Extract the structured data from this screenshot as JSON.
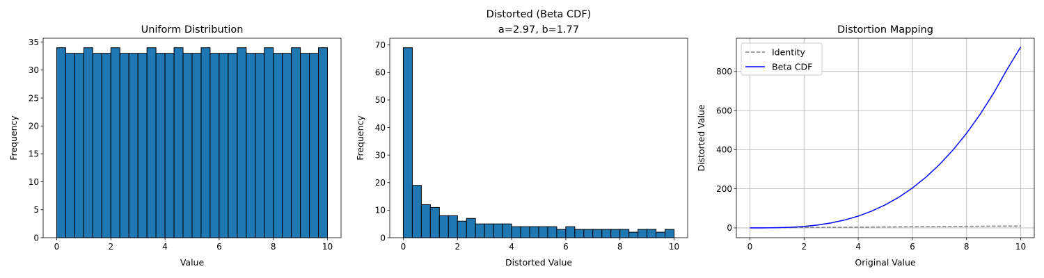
{
  "chart_data": [
    {
      "type": "bar",
      "title": "Uniform Distribution",
      "xlabel": "Value",
      "ylabel": "Frequency",
      "xlim": [
        -0.5,
        10.5
      ],
      "ylim": [
        0,
        35.7
      ],
      "xticks": [
        0,
        2,
        4,
        6,
        8,
        10
      ],
      "yticks": [
        0,
        5,
        10,
        15,
        20,
        25,
        30,
        35
      ],
      "bin_start": 0,
      "bin_width": 0.3333,
      "values": [
        34,
        33,
        33,
        34,
        33,
        33,
        34,
        33,
        33,
        33,
        34,
        33,
        33,
        34,
        33,
        33,
        34,
        33,
        33,
        33,
        34,
        33,
        33,
        34,
        33,
        33,
        34,
        33,
        33,
        34
      ],
      "bar_color": "#1f77b4",
      "edge_color": "#000000"
    },
    {
      "type": "bar",
      "title": "Distorted (Beta CDF)",
      "subtitle": "a=2.97, b=1.77",
      "xlabel": "Distorted Value",
      "ylabel": "Frequency",
      "xlim": [
        -0.5,
        10.5
      ],
      "ylim": [
        0,
        72.45
      ],
      "xticks": [
        0,
        2,
        4,
        6,
        8,
        10
      ],
      "yticks": [
        0,
        10,
        20,
        30,
        40,
        50,
        60,
        70
      ],
      "bin_start": 0,
      "bin_width": 0.3333,
      "values": [
        69,
        19,
        12,
        11,
        8,
        8,
        6,
        7,
        5,
        5,
        5,
        5,
        4,
        4,
        4,
        4,
        4,
        3,
        4,
        3,
        3,
        3,
        3,
        3,
        3,
        2,
        3,
        3,
        2,
        3
      ],
      "bar_color": "#1f77b4",
      "edge_color": "#000000"
    },
    {
      "type": "line",
      "title": "Distortion Mapping",
      "xlabel": "Original Value",
      "ylabel": "Distorted Value",
      "xlim": [
        -0.5,
        10.5
      ],
      "ylim": [
        -50,
        970
      ],
      "xticks": [
        0,
        2,
        4,
        6,
        8,
        10
      ],
      "yticks": [
        0,
        200,
        400,
        600,
        800
      ],
      "grid": true,
      "legend_position": "top-left",
      "series": [
        {
          "name": "Identity",
          "color": "#808080",
          "style": "dashed",
          "x": [
            0,
            10
          ],
          "y": [
            0,
            10
          ]
        },
        {
          "name": "Beta CDF",
          "color": "#0000ff",
          "style": "solid",
          "x": [
            0,
            0.5,
            1,
            1.5,
            2,
            2.5,
            3,
            3.5,
            4,
            4.5,
            5,
            5.5,
            6,
            6.5,
            7,
            7.5,
            8,
            8.5,
            9,
            9.5,
            10
          ],
          "y": [
            0,
            0.1,
            0.9,
            3.2,
            7.5,
            14.7,
            25.5,
            40.5,
            60.5,
            86.1,
            118.1,
            157.1,
            204.0,
            259.3,
            324.0,
            398.5,
            483.8,
            580.4,
            689.4,
            811.3,
            925
          ]
        }
      ]
    }
  ]
}
